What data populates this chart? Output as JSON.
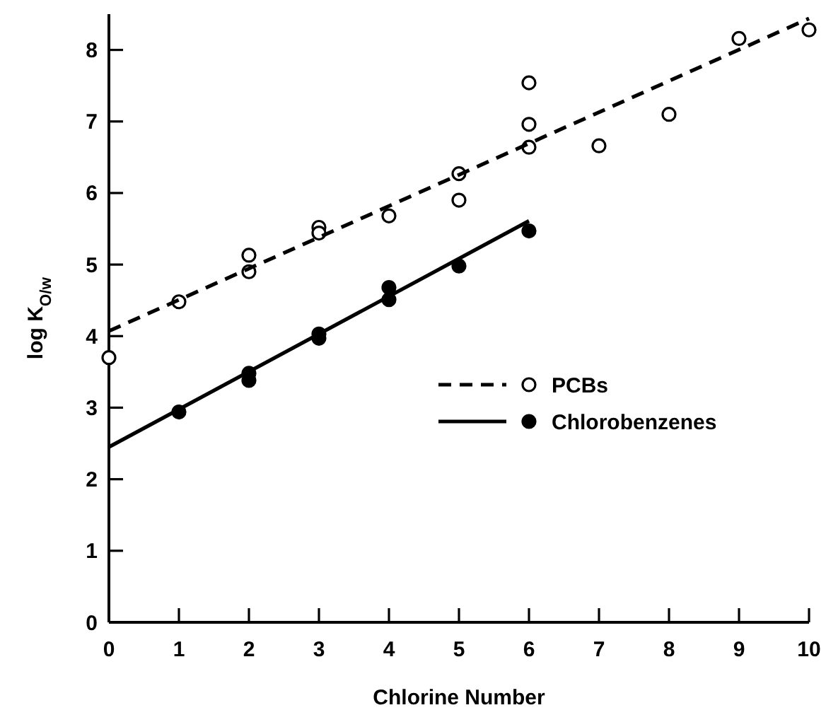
{
  "chart_data": {
    "type": "scatter",
    "xlabel": "Chlorine Number",
    "ylabel": "log K$_{O/w}$",
    "xlim": [
      0,
      10
    ],
    "ylim": [
      0,
      8.5
    ],
    "xticks": [
      0,
      1,
      2,
      3,
      4,
      5,
      6,
      7,
      8,
      9,
      10
    ],
    "yticks": [
      0,
      1,
      2,
      3,
      4,
      5,
      6,
      7,
      8
    ],
    "grid": false,
    "legend": "right",
    "series": [
      {
        "name": "PCBs",
        "marker": "circle",
        "color": "#ffffff",
        "x": [
          0,
          1,
          2,
          2,
          3,
          3,
          4,
          5,
          5,
          6,
          6,
          6,
          7,
          8,
          9,
          10
        ],
        "values": [
          3.7,
          4.48,
          5.13,
          4.9,
          5.52,
          5.44,
          5.68,
          6.27,
          5.9,
          7.54,
          6.96,
          6.64,
          6.66,
          7.1,
          8.16,
          8.28
        ]
      },
      {
        "type": "line",
        "line_style": "dashed",
        "marker": "none",
        "color": "#000000",
        "x": [
          0,
          10
        ],
        "values": [
          4.07,
          8.44
        ]
      },
      {
        "name": "Chlorobenzenes",
        "marker": "circle",
        "color": "#000000",
        "x": [
          1,
          2,
          2,
          3,
          3,
          4,
          4,
          5,
          6
        ],
        "values": [
          2.94,
          3.48,
          3.38,
          4.03,
          3.97,
          4.68,
          4.51,
          4.98,
          5.47
        ]
      },
      {
        "type": "line",
        "line_style": "solid",
        "marker": "none",
        "color": "#000000",
        "x": [
          0,
          6
        ],
        "values": [
          2.45,
          5.61
        ]
      }
    ]
  }
}
